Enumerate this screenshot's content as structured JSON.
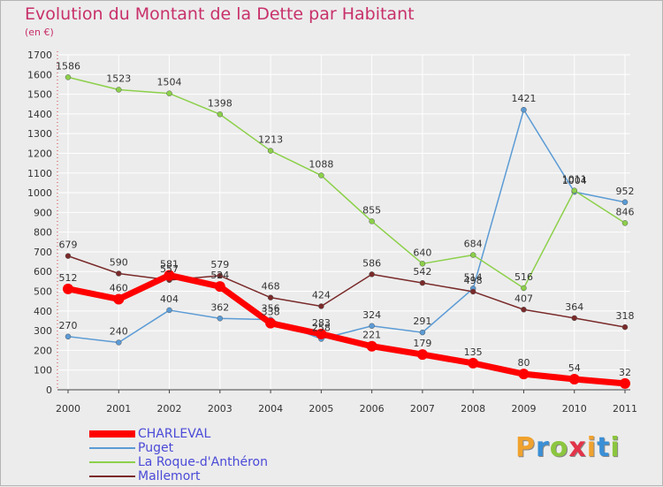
{
  "header": {
    "title": "Evolution du Montant de la Dette par Habitant",
    "unit": "(en €)"
  },
  "logo": {
    "letters": [
      "P",
      "r",
      "o",
      "x",
      "i",
      "t",
      "i"
    ],
    "colors": [
      "#f0a22e",
      "#3a8fd6",
      "#8cc63f",
      "#e2344a",
      "#f0a22e",
      "#3a8fd6",
      "#8cc63f"
    ]
  },
  "chart_data": {
    "type": "line",
    "title": "Evolution du Montant de la Dette par Habitant",
    "subtitle": "(en €)",
    "xlabel": "",
    "ylabel": "",
    "categories": [
      "2000",
      "2001",
      "2002",
      "2003",
      "2004",
      "2005",
      "2006",
      "2007",
      "2008",
      "2009",
      "2010",
      "2011"
    ],
    "ylim": [
      0,
      1700
    ],
    "yticks": [
      0,
      100,
      200,
      300,
      400,
      500,
      600,
      700,
      800,
      900,
      1000,
      1100,
      1200,
      1300,
      1400,
      1500,
      1600,
      1700
    ],
    "grid": true,
    "legend_position": "bottom-left",
    "series": [
      {
        "name": "Puget",
        "color": "#5b9bd5",
        "values": [
          270,
          240,
          404,
          362,
          356,
          258,
          324,
          291,
          514,
          1421,
          1004,
          952
        ],
        "width": 1.5,
        "marker": 6
      },
      {
        "name": "La Roque-d'Anthéron",
        "color": "#8cd04a",
        "values": [
          1586,
          1523,
          1504,
          1398,
          1213,
          1088,
          855,
          640,
          684,
          516,
          1011,
          846
        ],
        "width": 1.5,
        "marker": 6
      },
      {
        "name": "Mallemort",
        "color": "#7a2a2a",
        "values": [
          679,
          590,
          557,
          579,
          468,
          424,
          586,
          542,
          498,
          407,
          364,
          318
        ],
        "width": 1.5,
        "marker": 6
      },
      {
        "name": "CHARLEVAL",
        "color": "#ff0000",
        "values": [
          512,
          460,
          581,
          524,
          338,
          283,
          221,
          179,
          135,
          80,
          54,
          32
        ],
        "width": 7,
        "marker": 12
      }
    ],
    "legend_order": [
      "CHARLEVAL",
      "Puget",
      "La Roque-d'Anthéron",
      "Mallemort"
    ]
  }
}
